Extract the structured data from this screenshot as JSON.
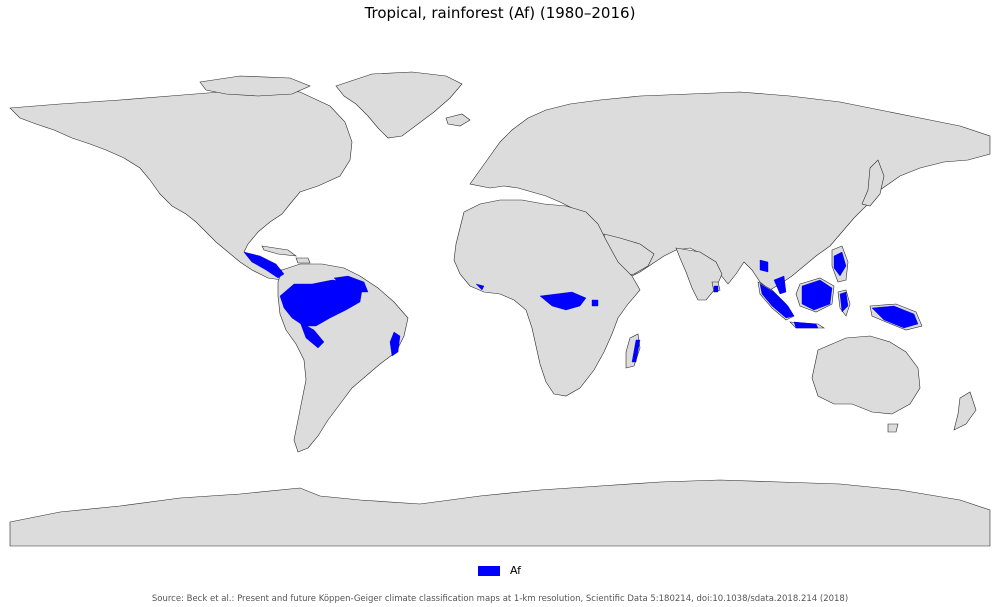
{
  "title": "Tropical, rainforest (Af) (1980–2016)",
  "legend": {
    "label": "Af",
    "color": "#0000ff"
  },
  "land_color": "#dcdcdc",
  "border_color": "#2a2a2a",
  "source": "Source: Beck et al.: Present and future Köppen-Geiger climate classification maps at 1-km resolution, Scientific Data 5:180214, doi:10.1038/sdata.2018.214 (2018)"
}
